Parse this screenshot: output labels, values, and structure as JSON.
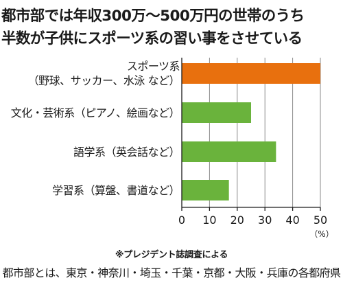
{
  "title_line1": "都市部では年収300万～500万円の世帯のうち",
  "title_line2": "半数が子供にスポーツ系の習い事をさせている",
  "chart_data": {
    "type": "bar",
    "orientation": "horizontal",
    "categories": [
      [
        "スポーツ系",
        "（野球、サッカー、水泳 など）"
      ],
      [
        "文化・芸術系（ピアノ、絵画など）"
      ],
      [
        "語学系（英会話など）"
      ],
      [
        "学習系（算盤、書道など）"
      ]
    ],
    "values": [
      50,
      25,
      34,
      17
    ],
    "colors": [
      "#e8700e",
      "#6ab33c",
      "#6ab33c",
      "#6ab33c"
    ],
    "xlim": [
      0,
      50
    ],
    "xticks": [
      0,
      10,
      20,
      30,
      40,
      50
    ],
    "unit_label": "（%）",
    "grid": true
  },
  "source": "※プレジデント誌調査による",
  "footnote": "都市部とは、東京・神奈川・埼玉・千葉・京都・大阪・兵庫の各都府県"
}
